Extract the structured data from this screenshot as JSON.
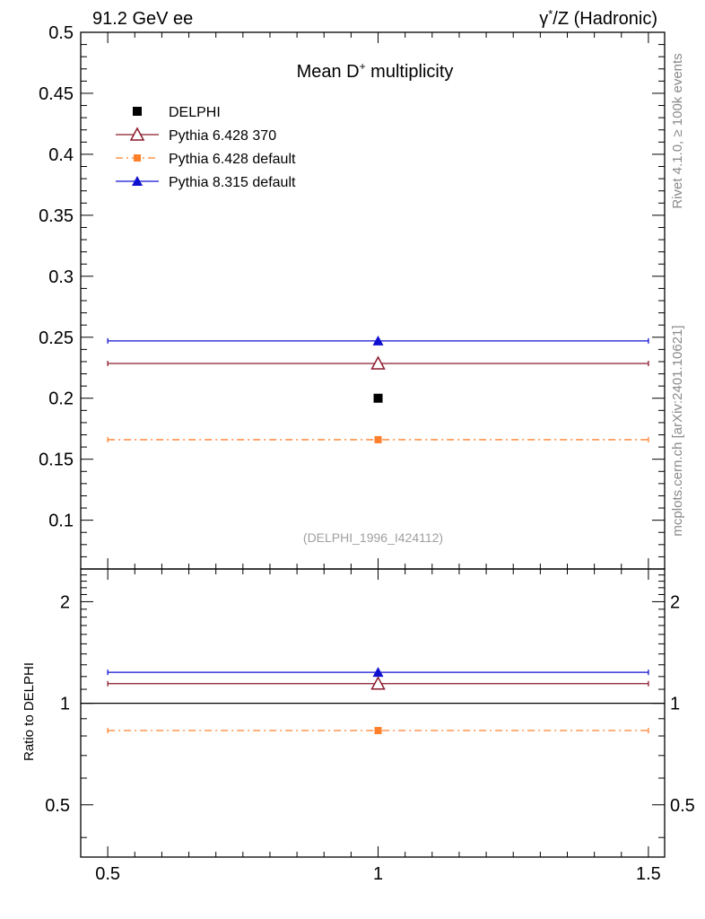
{
  "header": {
    "left": "91.2 GeV ee",
    "right_symbol": "γ",
    "right_star": "*",
    "right_rest": "/Z (Hadronic)"
  },
  "side_text": {
    "rivet": "Rivet 4.1.0, ≥ 100k events",
    "mcplots": "mcplots.cern.ch [arXiv:2401.10621]"
  },
  "chart_data": [
    {
      "type": "scatter",
      "panel": "main",
      "title_base": "Mean D",
      "title_sup": "+",
      "title_rest": " multiplicity",
      "analysis_label": "(DELPHI_1996_I424112)",
      "xlim": [
        0.45,
        1.53
      ],
      "ylim": [
        0.06,
        0.5
      ],
      "yticks": [
        {
          "v": 0.1,
          "label": "0.1"
        },
        {
          "v": 0.15,
          "label": "0.15"
        },
        {
          "v": 0.2,
          "label": "0.2"
        },
        {
          "v": 0.25,
          "label": "0.25"
        },
        {
          "v": 0.3,
          "label": "0.3"
        },
        {
          "v": 0.35,
          "label": "0.35"
        },
        {
          "v": 0.4,
          "label": "0.4"
        },
        {
          "v": 0.45,
          "label": "0.45"
        },
        {
          "v": 0.5,
          "label": "0.5"
        }
      ],
      "series": [
        {
          "name": "DELPHI",
          "kind": "data",
          "color": "#000000",
          "marker": "square",
          "x": 1.0,
          "y": 0.2,
          "xlow": 1.0,
          "xhigh": 1.0
        },
        {
          "name": "Pythia 6.428 370",
          "kind": "mc",
          "color": "#8b1a2b",
          "marker": "triangle-open",
          "dash": "",
          "x": 1.0,
          "y": 0.2285,
          "xlow": 0.5,
          "xhigh": 1.5
        },
        {
          "name": "Pythia 6.428 default",
          "kind": "mc",
          "color": "#ff7f2a",
          "marker": "square-small",
          "dash": "8,4,2,4",
          "x": 1.0,
          "y": 0.166,
          "xlow": 0.5,
          "xhigh": 1.5
        },
        {
          "name": "Pythia 8.315 default",
          "kind": "mc",
          "color": "#1010d0",
          "marker": "triangle",
          "dash": "",
          "x": 1.0,
          "y": 0.247,
          "xlow": 0.5,
          "xhigh": 1.5
        }
      ]
    },
    {
      "type": "scatter",
      "panel": "ratio",
      "ylabel": "Ratio to DELPHI",
      "xlim": [
        0.45,
        1.53
      ],
      "ylim": [
        0.35,
        2.5
      ],
      "reference": 1.0,
      "yticks": [
        {
          "v": 0.5,
          "label": "0.5"
        },
        {
          "v": 1,
          "label": "1"
        },
        {
          "v": 2,
          "label": "2"
        }
      ],
      "xticks": [
        {
          "v": 0.5,
          "label": "0.5"
        },
        {
          "v": 1,
          "label": "1"
        },
        {
          "v": 1.5,
          "label": "1.5"
        }
      ],
      "series": [
        {
          "name": "Pythia 6.428 370",
          "color": "#8b1a2b",
          "marker": "triangle-open",
          "dash": "",
          "x": 1.0,
          "y": 1.143,
          "xlow": 0.5,
          "xhigh": 1.5
        },
        {
          "name": "Pythia 6.428 default",
          "color": "#ff7f2a",
          "marker": "square-small",
          "dash": "8,4,2,4",
          "x": 1.0,
          "y": 0.83,
          "xlow": 0.5,
          "xhigh": 1.5
        },
        {
          "name": "Pythia 8.315 default",
          "color": "#1010d0",
          "marker": "triangle",
          "dash": "",
          "x": 1.0,
          "y": 1.235,
          "xlow": 0.5,
          "xhigh": 1.5
        }
      ]
    }
  ]
}
